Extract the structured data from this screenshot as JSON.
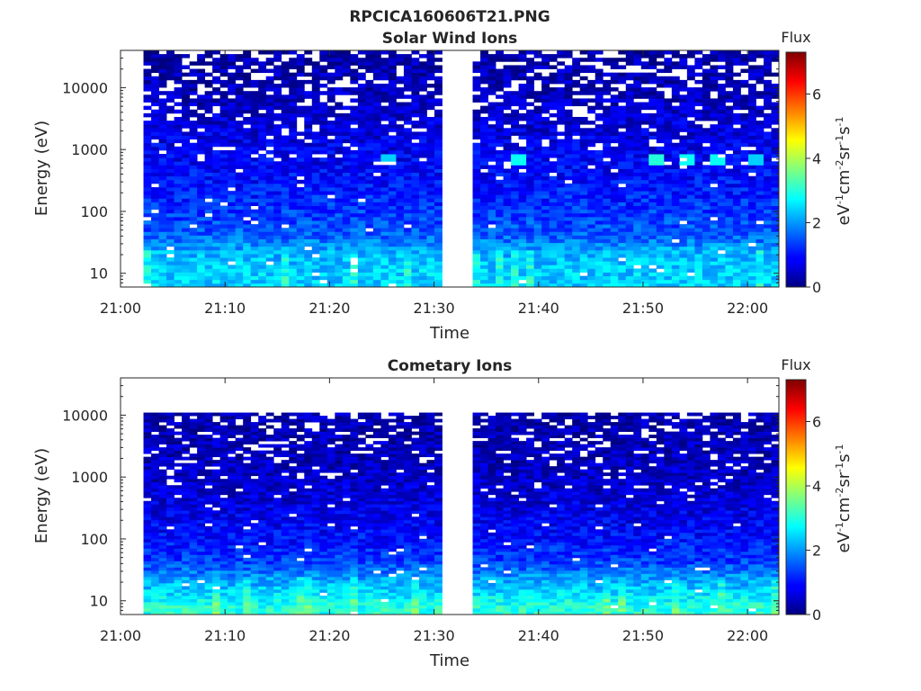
{
  "figure_title": "RPCICA160606T21.PNG",
  "colors": {
    "colormap": "jet",
    "background": "#ffffff",
    "axis": "#262626"
  },
  "chart_data": [
    {
      "type": "heatmap",
      "title": "Solar Wind Ions",
      "xlabel": "Time",
      "ylabel": "Energy (eV)",
      "xlim": [
        "21:00",
        "22:03"
      ],
      "ylim": [
        6,
        40000
      ],
      "yscale": "log",
      "x_ticks": [
        "21:00",
        "21:10",
        "21:20",
        "21:30",
        "21:40",
        "21:50",
        "22:00"
      ],
      "y_ticks": [
        "10",
        "100",
        "1000",
        "10000"
      ],
      "data_gaps": [
        [
          "21:00",
          "21:02"
        ],
        [
          "21:31",
          "21:34"
        ]
      ],
      "colorbar": {
        "title": "Flux",
        "label": "eV-1cm-2sr-1s-1",
        "range": [
          0,
          7.3
        ],
        "ticks": [
          "0",
          "2",
          "4",
          "6"
        ]
      },
      "flux_profile": {
        "energy_ev": [
          7,
          10,
          15,
          22,
          40,
          100,
          300,
          1000,
          3000,
          10000,
          30000
        ],
        "typical_flux": [
          2.4,
          2.4,
          2.3,
          2.2,
          1.6,
          1.3,
          1.0,
          0.8,
          0.6,
          0.4,
          0.3
        ]
      },
      "hotspots": [
        {
          "time": "21:38",
          "energy_ev": 700,
          "flux": 2.8
        },
        {
          "time": "21:51",
          "energy_ev": 700,
          "flux": 3.0
        },
        {
          "time": "21:54",
          "energy_ev": 700,
          "flux": 2.8
        },
        {
          "time": "21:57",
          "energy_ev": 700,
          "flux": 2.8
        },
        {
          "time": "22:01",
          "energy_ev": 700,
          "flux": 2.4
        },
        {
          "time": "21:26",
          "energy_ev": 700,
          "flux": 2.4
        }
      ]
    },
    {
      "type": "heatmap",
      "title": "Cometary Ions",
      "xlabel": "Time",
      "ylabel": "Energy (eV)",
      "xlim": [
        "21:00",
        "22:03"
      ],
      "ylim": [
        6,
        40000
      ],
      "yscale": "log",
      "x_ticks": [
        "21:00",
        "21:10",
        "21:20",
        "21:30",
        "21:40",
        "21:50",
        "22:00"
      ],
      "y_ticks": [
        "10",
        "100",
        "1000",
        "10000"
      ],
      "data_gaps": [
        [
          "21:00",
          "21:02"
        ],
        [
          "21:31",
          "21:34"
        ]
      ],
      "energy_cutoff_ev": 11000,
      "colorbar": {
        "title": "Flux",
        "label": "eV-1cm-2sr-1s-1",
        "range": [
          0,
          7.3
        ],
        "ticks": [
          "0",
          "2",
          "4",
          "6"
        ]
      },
      "flux_profile": {
        "energy_ev": [
          7,
          10,
          15,
          22,
          40,
          100,
          300,
          1000,
          3000,
          10000
        ],
        "typical_flux": [
          3.0,
          2.8,
          2.4,
          2.1,
          1.4,
          1.0,
          0.7,
          0.5,
          0.4,
          0.3
        ]
      }
    }
  ]
}
